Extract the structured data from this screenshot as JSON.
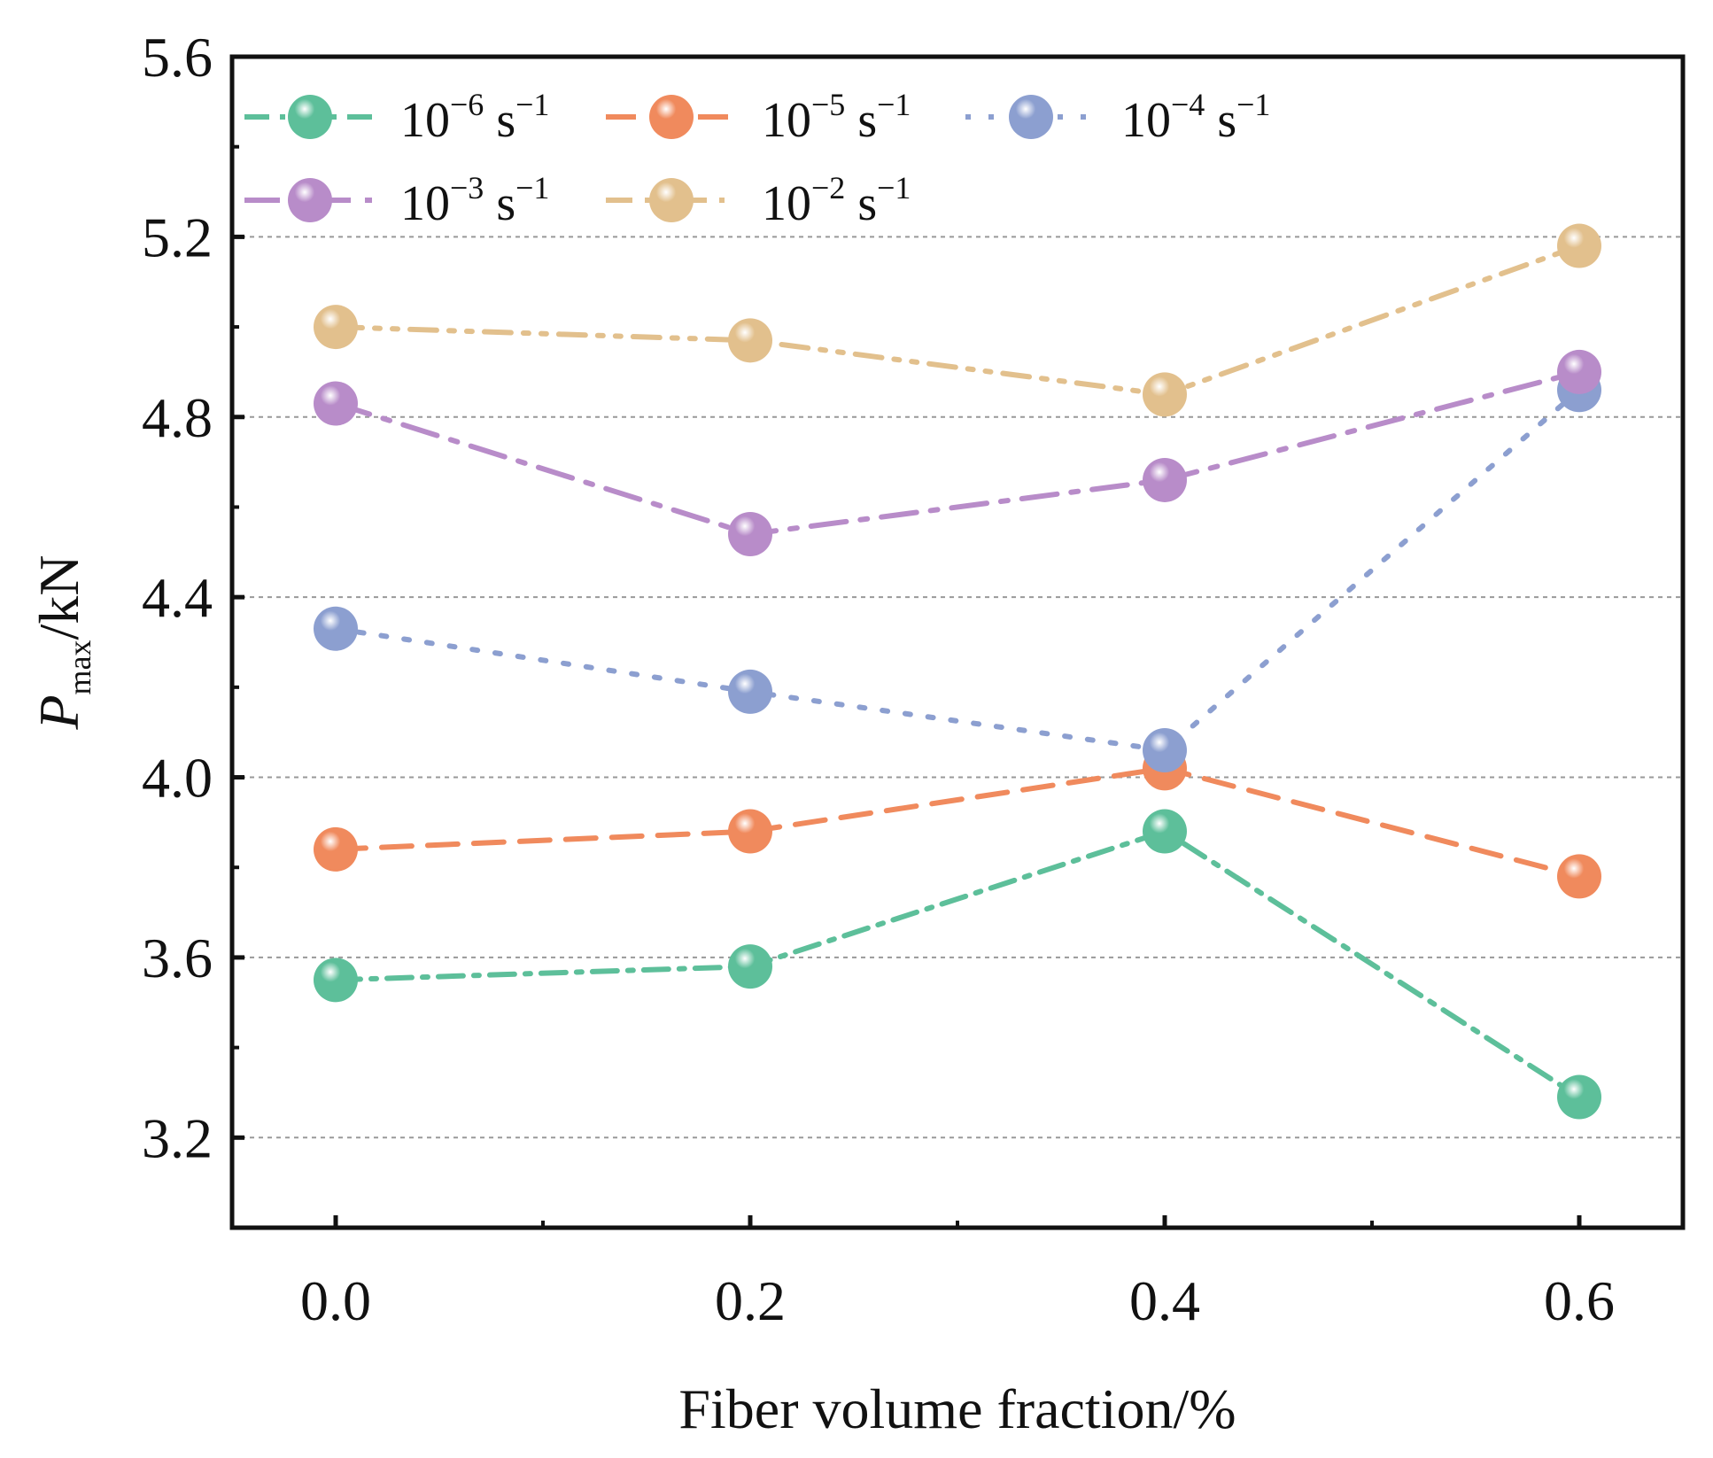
{
  "chart_data": {
    "type": "line",
    "title": "",
    "xlabel": "Fiber volume fraction/%",
    "ylabel": {
      "main": "P",
      "sub": "max",
      "unit": "/kN"
    },
    "x": [
      0.0,
      0.2,
      0.4,
      0.6
    ],
    "xlim": [
      -0.05,
      0.65
    ],
    "ylim": [
      3.0,
      5.6
    ],
    "xticks": [
      "0.0",
      "0.2",
      "0.4",
      "0.6"
    ],
    "yticks": [
      "3.2",
      "3.6",
      "4.0",
      "4.4",
      "4.8",
      "5.2",
      "5.6"
    ],
    "grid": "horizontal dotted",
    "legend_position": "top-left",
    "series": [
      {
        "name": "10^-6 s^-1",
        "base": "10",
        "exp": "−6",
        "unit": "s",
        "unit_exp": "−1",
        "color": "#5dbf9a",
        "dash": "28 12 6 12",
        "values": [
          3.55,
          3.58,
          3.88,
          3.29
        ]
      },
      {
        "name": "10^-5 s^-1",
        "base": "10",
        "exp": "−5",
        "unit": "s",
        "unit_exp": "−1",
        "color": "#f08a5d",
        "dash": "34 18",
        "values": [
          3.84,
          3.88,
          4.02,
          3.78
        ]
      },
      {
        "name": "10^-4 s^-1",
        "base": "10",
        "exp": "−4",
        "unit": "s",
        "unit_exp": "−1",
        "color": "#8c9fd0",
        "dash": "6 20",
        "values": [
          4.33,
          4.19,
          4.06,
          4.86
        ]
      },
      {
        "name": "10^-3 s^-1",
        "base": "10",
        "exp": "−3",
        "unit": "s",
        "unit_exp": "−1",
        "color": "#b88cc9",
        "dash": "40 16 8 16",
        "values": [
          4.83,
          4.54,
          4.66,
          4.9
        ]
      },
      {
        "name": "10^-2 s^-1",
        "base": "10",
        "exp": "−2",
        "unit": "s",
        "unit_exp": "−1",
        "color": "#e2c08d",
        "dash": "30 14 6 14 6 14",
        "values": [
          5.0,
          4.97,
          4.85,
          5.18
        ]
      }
    ]
  }
}
